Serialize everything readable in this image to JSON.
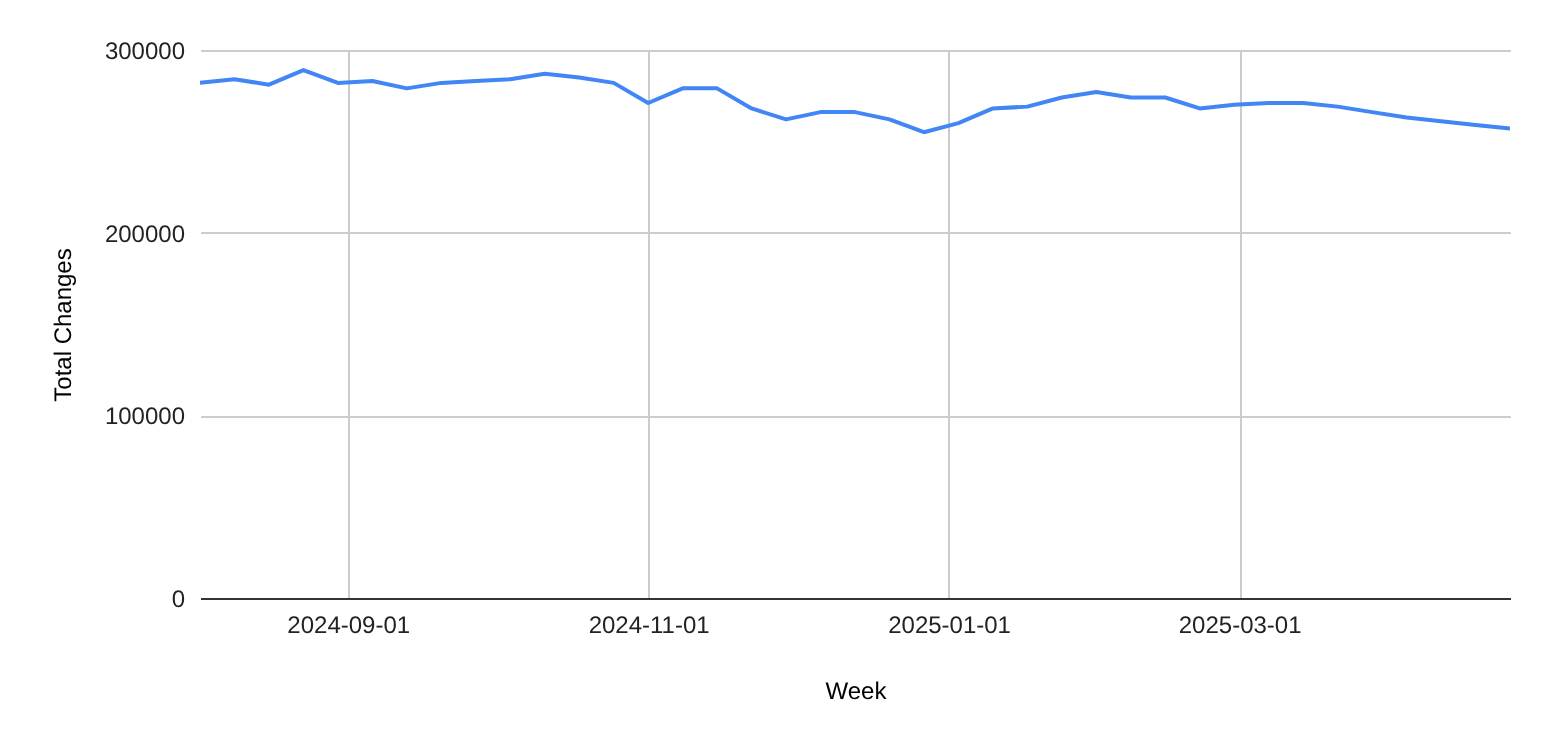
{
  "chart_data": {
    "type": "line",
    "xlabel": "Week",
    "ylabel": "Total Changes",
    "x": [
      "2024-08-02",
      "2024-08-09",
      "2024-08-16",
      "2024-08-23",
      "2024-08-30",
      "2024-09-06",
      "2024-09-13",
      "2024-09-20",
      "2024-09-27",
      "2024-10-04",
      "2024-10-11",
      "2024-10-18",
      "2024-10-25",
      "2024-11-01",
      "2024-11-08",
      "2024-11-15",
      "2024-11-22",
      "2024-11-29",
      "2024-12-06",
      "2024-12-13",
      "2024-12-20",
      "2024-12-27",
      "2025-01-03",
      "2025-01-10",
      "2025-01-17",
      "2025-01-24",
      "2025-01-31",
      "2025-02-07",
      "2025-02-14",
      "2025-02-21",
      "2025-02-28",
      "2025-03-07",
      "2025-03-14",
      "2025-03-21",
      "2025-03-28",
      "2025-04-04",
      "2025-04-11",
      "2025-04-18",
      "2025-04-25"
    ],
    "series": [
      {
        "color": "#4285f4",
        "values": [
          282000,
          284000,
          281000,
          289000,
          282000,
          283000,
          279000,
          282000,
          283000,
          284000,
          287000,
          285000,
          282000,
          271000,
          279000,
          279000,
          268000,
          262000,
          266000,
          266000,
          262000,
          255000,
          260000,
          268000,
          269000,
          274000,
          277000,
          274000,
          274000,
          268000,
          270000,
          271000,
          271000,
          269000,
          266000,
          263000,
          261000,
          259000,
          257000
        ]
      }
    ],
    "xlim": [
      "2024-08-02",
      "2025-04-25"
    ],
    "xticks": [
      "2024-09-01",
      "2024-11-01",
      "2025-01-01",
      "2025-03-01"
    ],
    "ylim": [
      0,
      300000
    ],
    "yticks": [
      0,
      100000,
      200000,
      300000
    ],
    "grid": true,
    "marker": "none",
    "line_style": "solid"
  }
}
